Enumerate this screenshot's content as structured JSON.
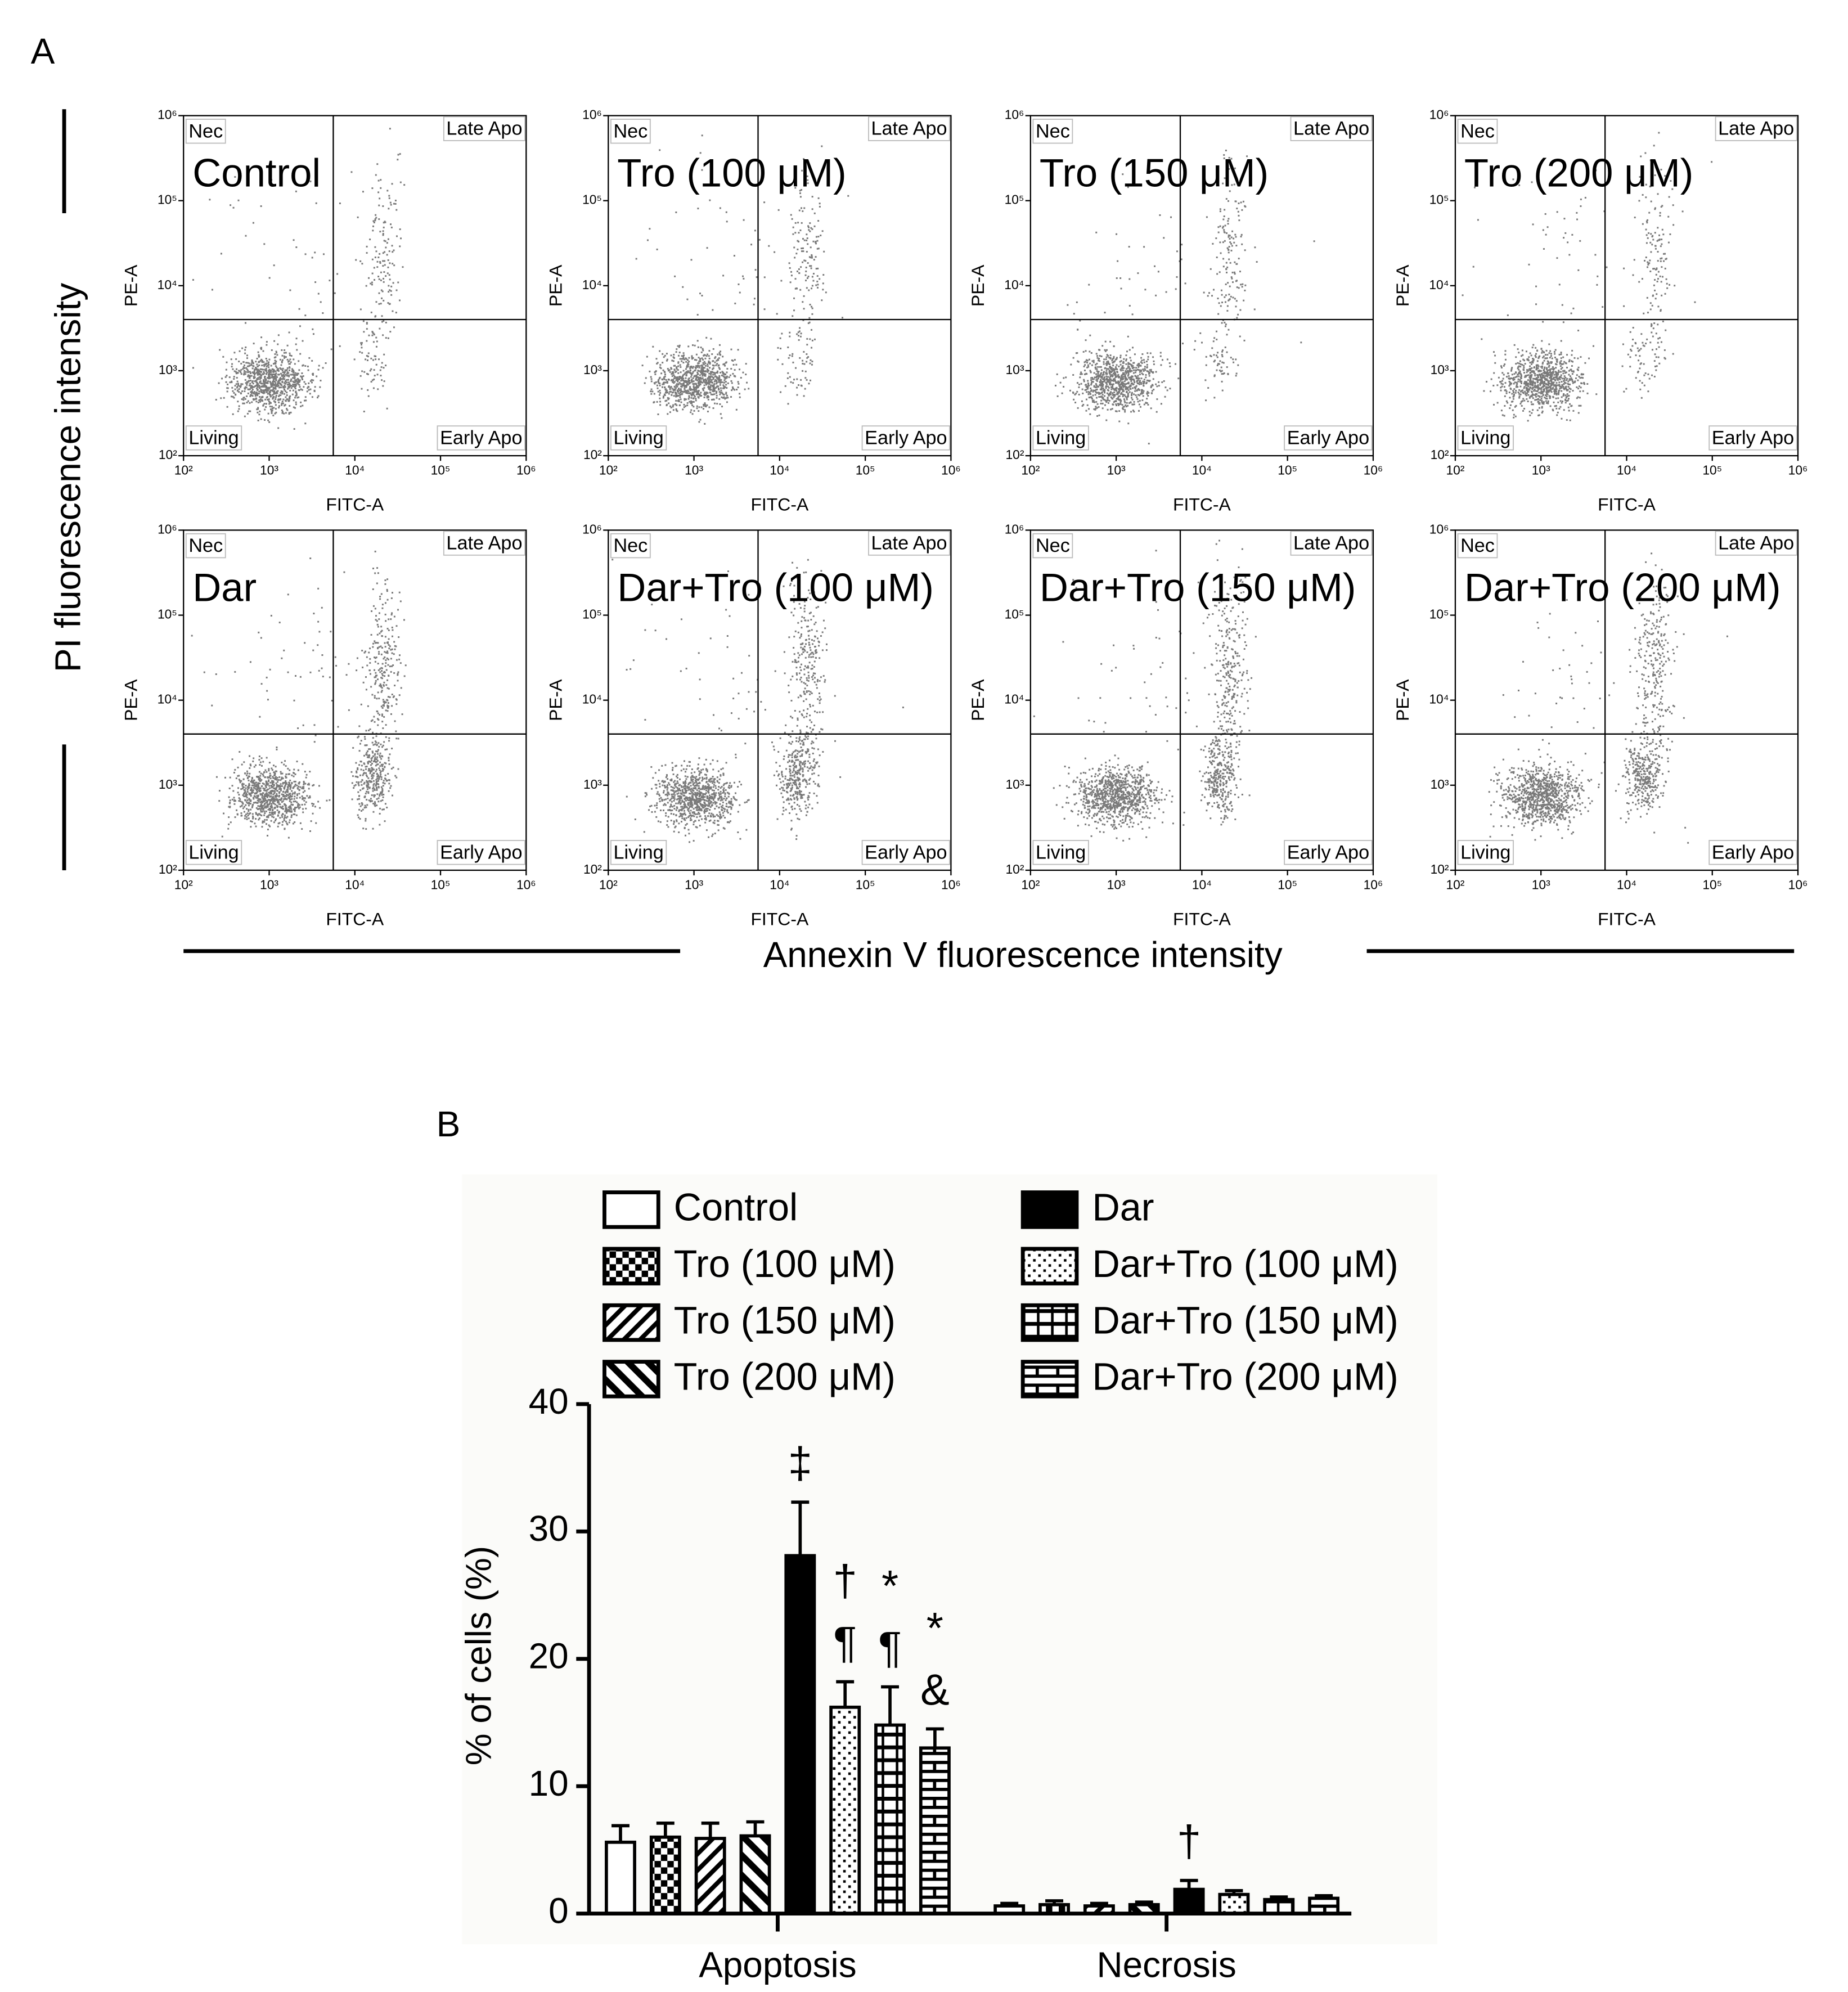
{
  "panel_a": {
    "label": "A",
    "y_title": "PI fluorescence intensity",
    "x_title": "Annexin V fluorescence intensity",
    "x_axis": "FITC-A",
    "y_axis": "PE-A",
    "log": true,
    "xlim": [
      100,
      1000000
    ],
    "ylim": [
      100,
      1000000
    ],
    "ticks": [
      {
        "value": 100,
        "label": "10²"
      },
      {
        "value": 1000,
        "label": "10³"
      },
      {
        "value": 10000,
        "label": "10⁴"
      },
      {
        "value": 100000,
        "label": "10⁵"
      },
      {
        "value": 1000000,
        "label": "10⁶"
      }
    ],
    "gate": {
      "x": 5600,
      "y": 4000
    },
    "quadrants": {
      "top_left": "Nec",
      "top_right": "Late Apo",
      "bottom_left": "Living",
      "bottom_right": "Early Apo"
    },
    "plots": [
      "Control",
      "Tro (100 μM)",
      "Tro (150 μM)",
      "Tro (200 μM)",
      "Dar",
      "Dar+Tro (100 μM)",
      "Dar+Tro (150 μM)",
      "Dar+Tro (200 μM)"
    ]
  },
  "panel_b_label": "B",
  "chart_data": {
    "type": "bar",
    "y_label": "% of cells (%)",
    "categories": [
      "Apoptosis",
      "Necrosis"
    ],
    "ylim": [
      0,
      40
    ],
    "yticks": [
      0,
      10,
      20,
      30,
      40
    ],
    "series": [
      {
        "name": "Control",
        "color": "#000000",
        "pattern": "open",
        "values": [
          5.6,
          0.6
        ],
        "errors": [
          1.3,
          0.2
        ],
        "annotations": [
          null,
          null
        ]
      },
      {
        "name": "Tro (100 μM)",
        "color": "#000000",
        "pattern": "checker",
        "values": [
          6.0,
          0.7
        ],
        "errors": [
          1.1,
          0.3
        ],
        "annotations": [
          null,
          null
        ]
      },
      {
        "name": "Tro (150 μM)",
        "color": "#000000",
        "pattern": "diagonal",
        "values": [
          5.9,
          0.6
        ],
        "errors": [
          1.2,
          0.2
        ],
        "annotations": [
          null,
          null
        ]
      },
      {
        "name": "Tro (200 μM)",
        "color": "#000000",
        "pattern": "antidiagonal",
        "values": [
          6.1,
          0.7
        ],
        "errors": [
          1.1,
          0.2
        ],
        "annotations": [
          null,
          null
        ]
      },
      {
        "name": "Dar",
        "color": "#000000",
        "pattern": "solid",
        "values": [
          28.1,
          1.9
        ],
        "errors": [
          4.2,
          0.7
        ],
        "annotations": [
          [
            "‡"
          ],
          [
            "†"
          ]
        ]
      },
      {
        "name": "Dar+Tro (100 μM)",
        "color": "#000000",
        "pattern": "dots",
        "values": [
          16.2,
          1.5
        ],
        "errors": [
          2.0,
          0.3
        ],
        "annotations": [
          [
            "†",
            "¶"
          ],
          null
        ]
      },
      {
        "name": "Dar+Tro (150 μM)",
        "color": "#000000",
        "pattern": "grid",
        "values": [
          14.8,
          1.1
        ],
        "errors": [
          3.0,
          0.2
        ],
        "annotations": [
          [
            "*",
            "¶"
          ],
          null
        ]
      },
      {
        "name": "Dar+Tro (200 μM)",
        "color": "#000000",
        "pattern": "brick",
        "values": [
          13.0,
          1.2
        ],
        "errors": [
          1.5,
          0.2
        ],
        "annotations": [
          [
            "*",
            "&"
          ],
          null
        ]
      }
    ]
  }
}
